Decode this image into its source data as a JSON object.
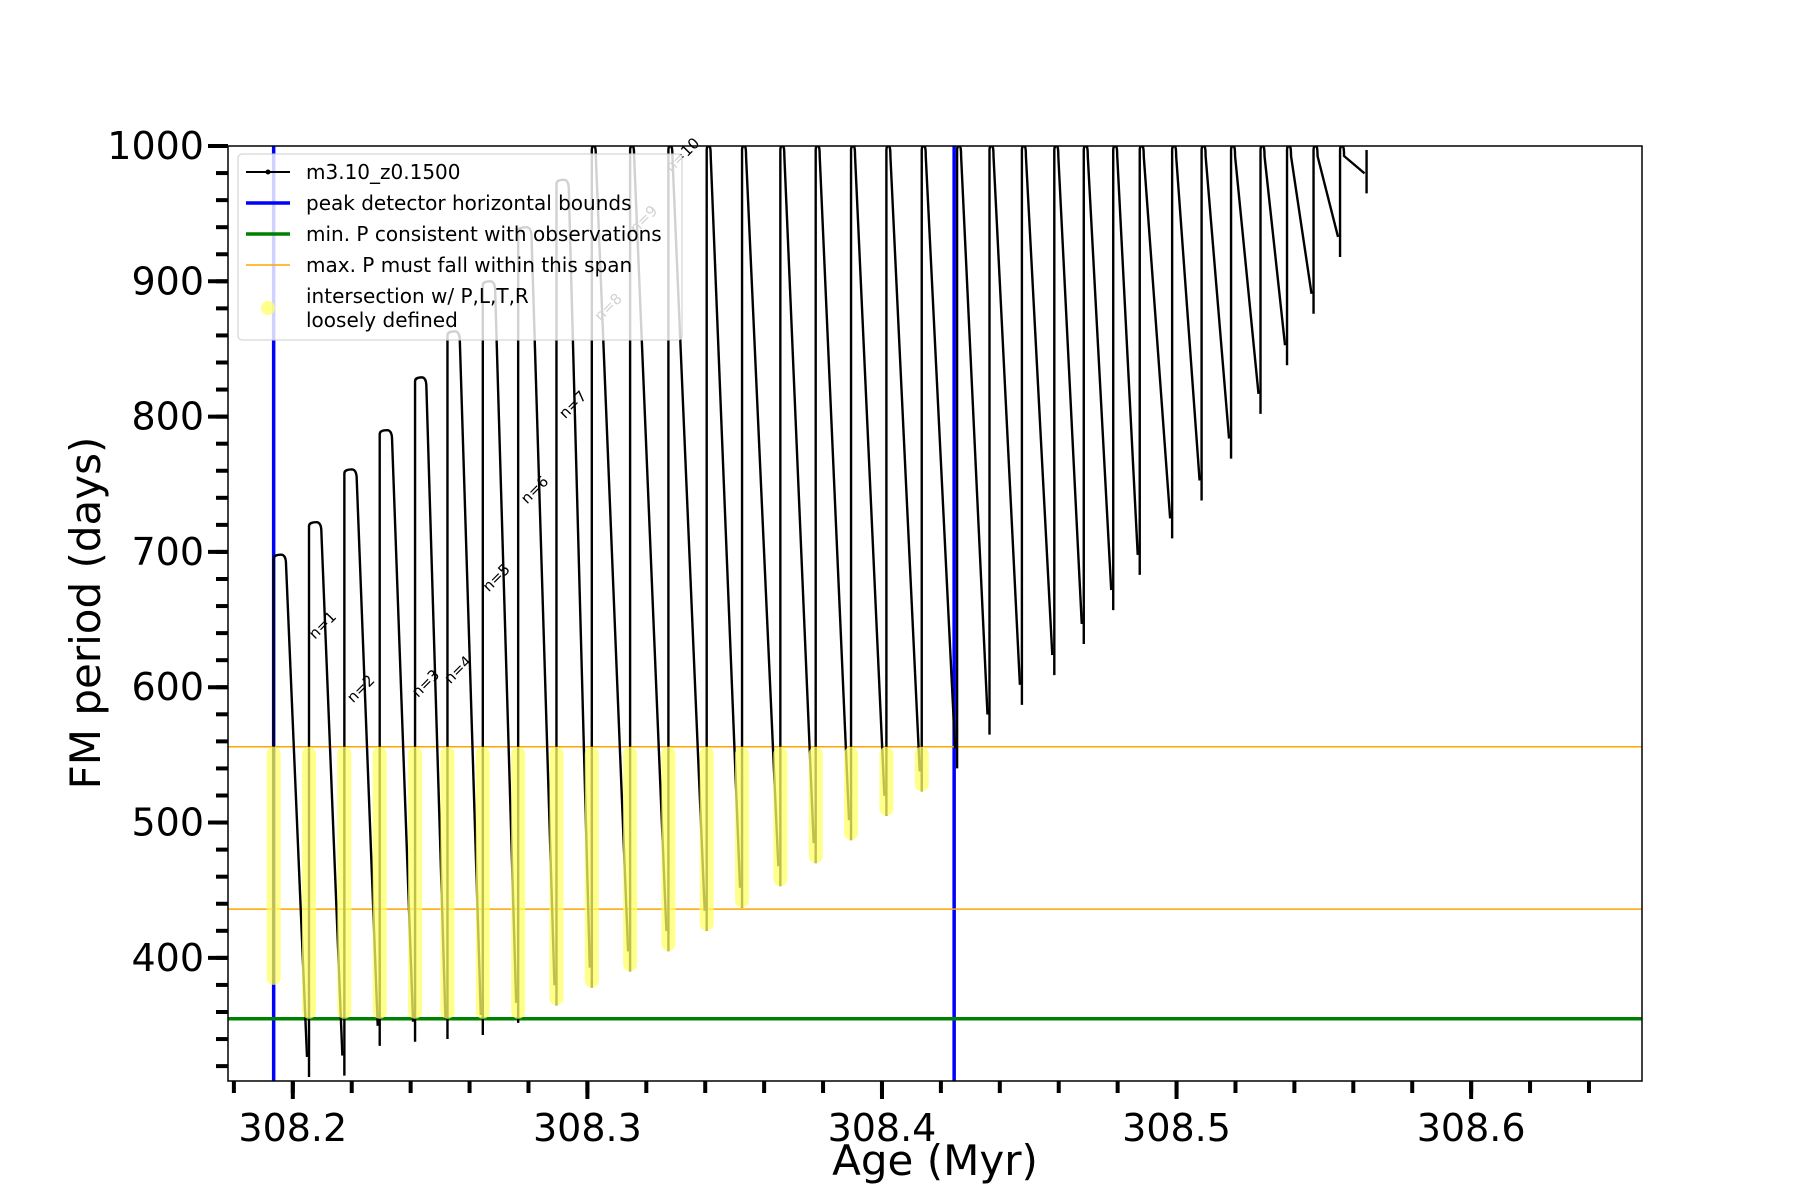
{
  "chart_data": {
    "type": "line",
    "xlabel": "Age (Myr)",
    "ylabel": "FM period (days)",
    "xlim": [
      308.178,
      308.658
    ],
    "ylim": [
      309,
      1000
    ],
    "x_ticks": [
      308.2,
      308.3,
      308.4,
      308.5,
      308.6
    ],
    "x_tick_labels": [
      "308.2",
      "308.3",
      "308.4",
      "308.5",
      "308.6"
    ],
    "y_ticks": [
      400,
      500,
      600,
      700,
      800,
      900,
      1000
    ],
    "y_tick_labels": [
      "400",
      "500",
      "600",
      "700",
      "800",
      "900",
      "1000"
    ],
    "grid": false,
    "legend_position": "top-left",
    "legend": [
      {
        "label": "m3.10_z0.1500",
        "style": "line-dots",
        "color": "#000000"
      },
      {
        "label": "peak detector horizontal bounds",
        "style": "line",
        "color": "#0000ff"
      },
      {
        "label": "min. P consistent with observations",
        "style": "line",
        "color": "#008000"
      },
      {
        "label": "max. P must fall within this span",
        "style": "line",
        "color": "#ffa500"
      },
      {
        "label": "intersection w/ P,L,T,R\nloosely defined",
        "style": "marker",
        "color": "#ffff66"
      }
    ],
    "reference_lines": {
      "vertical_blue_x": [
        308.1935,
        308.4245
      ],
      "horizontal_green_y": 355,
      "horizontal_orange_y": [
        436,
        556
      ]
    },
    "series": [
      {
        "name": "m3.10_z0.1500",
        "color": "#000000",
        "pulses": [
          {
            "x": 308.1935,
            "peak": 698,
            "min": 380
          },
          {
            "x": 308.2055,
            "peak": 722,
            "min": 312
          },
          {
            "x": 308.2175,
            "peak": 761,
            "min": 313
          },
          {
            "x": 308.2295,
            "peak": 790,
            "min": 335
          },
          {
            "x": 308.2415,
            "peak": 829,
            "min": 338
          },
          {
            "x": 308.2525,
            "peak": 863,
            "min": 340
          },
          {
            "x": 308.2645,
            "peak": 900,
            "min": 343
          },
          {
            "x": 308.2765,
            "peak": 940,
            "min": 352
          },
          {
            "x": 308.2895,
            "peak": 975,
            "min": 365
          },
          {
            "x": 308.3015,
            "peak": 1000,
            "min": 378
          },
          {
            "x": 308.3145,
            "peak": 1000,
            "min": 390
          },
          {
            "x": 308.3275,
            "peak": 1000,
            "min": 405
          },
          {
            "x": 308.3405,
            "peak": 1000,
            "min": 420
          },
          {
            "x": 308.3525,
            "peak": 1000,
            "min": 437
          },
          {
            "x": 308.3655,
            "peak": 1000,
            "min": 453
          },
          {
            "x": 308.3775,
            "peak": 1000,
            "min": 470
          },
          {
            "x": 308.3895,
            "peak": 1000,
            "min": 487
          },
          {
            "x": 308.4015,
            "peak": 1000,
            "min": 505
          },
          {
            "x": 308.4135,
            "peak": 1000,
            "min": 523
          },
          {
            "x": 308.4255,
            "peak": 1000,
            "min": 540
          },
          {
            "x": 308.4365,
            "peak": 1000,
            "min": 565
          },
          {
            "x": 308.4475,
            "peak": 1000,
            "min": 587
          },
          {
            "x": 308.4585,
            "peak": 1000,
            "min": 609
          },
          {
            "x": 308.4685,
            "peak": 1000,
            "min": 632
          },
          {
            "x": 308.4785,
            "peak": 1000,
            "min": 657
          },
          {
            "x": 308.4875,
            "peak": 1000,
            "min": 683
          },
          {
            "x": 308.4985,
            "peak": 1000,
            "min": 710
          },
          {
            "x": 308.5085,
            "peak": 1000,
            "min": 738
          },
          {
            "x": 308.5185,
            "peak": 1000,
            "min": 769
          },
          {
            "x": 308.5285,
            "peak": 1000,
            "min": 802
          },
          {
            "x": 308.5375,
            "peak": 1000,
            "min": 838
          },
          {
            "x": 308.5465,
            "peak": 1000,
            "min": 876
          },
          {
            "x": 308.5555,
            "peak": 1000,
            "min": 918
          },
          {
            "x": 308.5645,
            "peak": 1000,
            "min": 965
          }
        ]
      }
    ],
    "annotations": [
      {
        "text": "n=1",
        "x": 308.2075,
        "y": 635
      },
      {
        "text": "n=2",
        "x": 308.2205,
        "y": 588
      },
      {
        "text": "n=3",
        "x": 308.2425,
        "y": 592
      },
      {
        "text": "n=4",
        "x": 308.2535,
        "y": 602
      },
      {
        "text": "n=5",
        "x": 308.2665,
        "y": 670
      },
      {
        "text": "n=6",
        "x": 308.2795,
        "y": 735
      },
      {
        "text": "n=7",
        "x": 308.2925,
        "y": 798
      },
      {
        "text": "n=8",
        "x": 308.3045,
        "y": 870
      },
      {
        "text": "n=9",
        "x": 308.3165,
        "y": 935
      },
      {
        "text": "n=10",
        "x": 308.3285,
        "y": 980
      }
    ]
  }
}
